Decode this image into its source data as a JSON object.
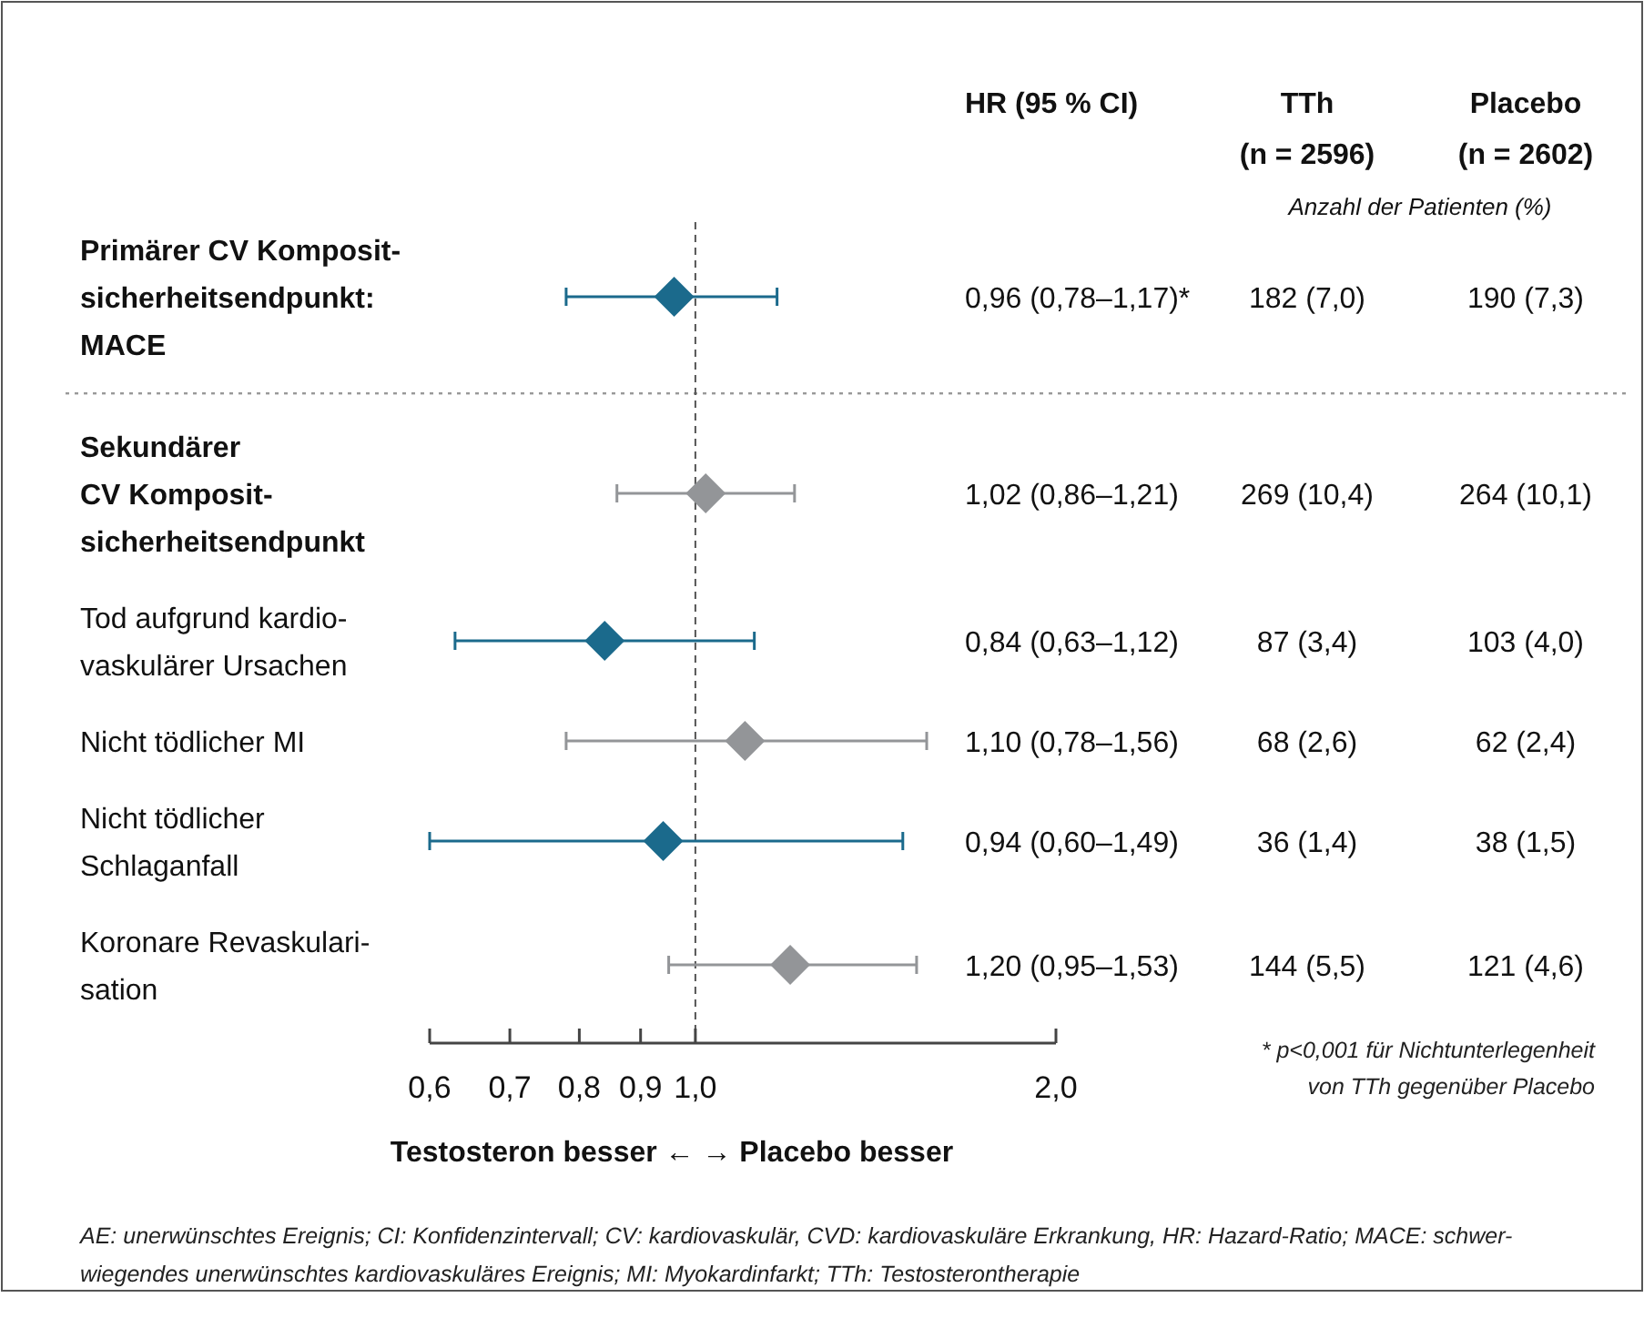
{
  "chart_data": {
    "type": "scatter",
    "orientation": "horizontal",
    "marker": "diamond",
    "grid": false,
    "log": "x",
    "categories": [
      "Primärer CV Komposit-\nsicherheitsendpunkt:\nMACE",
      "Sekundärer\nCV Komposit-\nsicherheitsendpunkt",
      "Tod aufgrund kardio-\nvaskulärer Ursachen",
      "Nicht tödlicher MI",
      "Nicht tödlicher\nSchlaganfall",
      "Koronare Revaskulari-\nsation"
    ],
    "values": [
      0.96,
      1.02,
      0.84,
      1.1,
      0.94,
      1.2
    ],
    "errors": [
      [
        0.78,
        1.17
      ],
      [
        0.86,
        1.21
      ],
      [
        0.63,
        1.12
      ],
      [
        0.78,
        1.56
      ],
      [
        0.6,
        1.49
      ],
      [
        0.95,
        1.53
      ]
    ],
    "colors": [
      "#1b6a8c",
      "#939598",
      "#1b6a8c",
      "#939598",
      "#1b6a8c",
      "#939598"
    ],
    "xlim": [
      0.6,
      2.0
    ],
    "xticks": [
      {
        "value": 0.6,
        "label": "0,6"
      },
      {
        "value": 0.7,
        "label": "0,7"
      },
      {
        "value": 0.8,
        "label": "0,8"
      },
      {
        "value": 0.9,
        "label": "0,9"
      },
      {
        "value": 1.0,
        "label": "1,0"
      },
      {
        "value": 2.0,
        "label": "2,0"
      }
    ],
    "xlabel": "Testosteron besser ← → Placebo besser",
    "ref_lines": [
      {
        "axis": "x",
        "value": 1.0,
        "line_style": "dashed",
        "color": "#555555"
      }
    ],
    "annotations": [
      "HR (95 % CI)",
      "TTh",
      "(n = 2596)",
      "Placebo",
      "(n = 2602)",
      "Anzahl der Patienten (%)",
      "0,96 (0,78–1,17)*",
      "182 (7,0)",
      "190 (7,3)",
      "1,02 (0,86–1,21)",
      "269 (10,4)",
      "264 (10,1)",
      "0,84 (0,63–1,12)",
      "87 (3,4)",
      "103 (4,0)",
      "1,10 (0,78–1,56)",
      "68 (2,6)",
      "62 (2,4)",
      "0,94 (0,60–1,49)",
      "36 (1,4)",
      "38 (1,5)",
      "1,20 (0,95–1,53)",
      "144 (5,5)",
      "121 (4,6)",
      "* p<0,001 für Nichtunterlegenheit\nvon TTh gegenüber Placebo",
      "AE: unerwünschtes Ereignis; CI: Konfidenzintervall; CV: kardiovaskulär, CVD: kardiovaskuläre Erkrankung, HR: Hazard-Ratio; MACE: schwer-\nwiegendes unerwünschtes kardiovaskuläres Ereignis; MI: Myokardinfarkt; TTh: Testosterontherapie"
    ]
  }
}
